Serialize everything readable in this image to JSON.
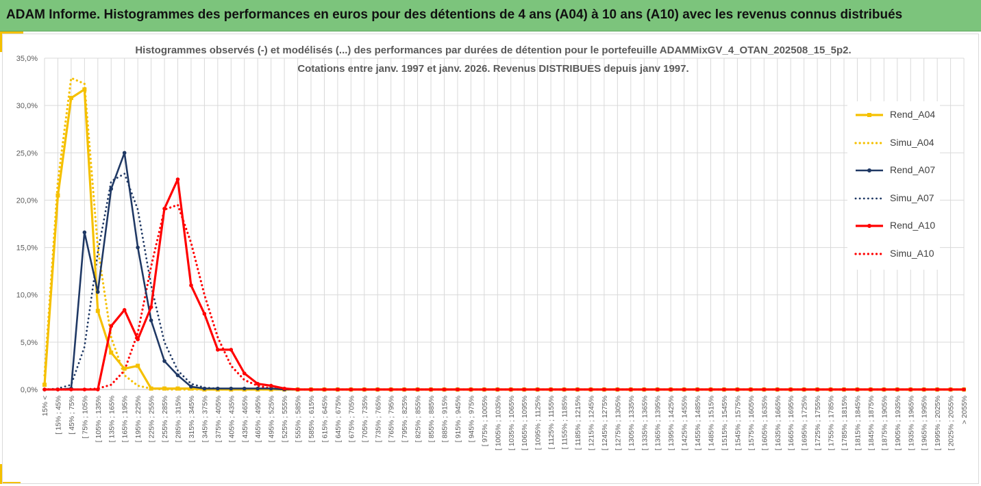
{
  "banner": {
    "title": "ADAM Informe. Histogrammes des performances en euros pour des détentions de 4 ans (A04) à 10 ans (A10) avec les revenus connus distribués"
  },
  "chart_data": {
    "type": "line",
    "title_line1": "Histogrammes observés (-) et modélisés (...) des performances par durées de détention pour  le portefeuille ADAMMixGV_4_OTAN_202508_15_5p2.",
    "title_line2": "Cotations  entre janv. 1997 et janv. 2026. Revenus DISTRIBUES depuis janv 1997.",
    "xlabel": "",
    "ylabel": "",
    "ylim": [
      0,
      35
    ],
    "y_ticks": [
      "0,0%",
      "5,0%",
      "10,0%",
      "15,0%",
      "20,0%",
      "25,0%",
      "30,0%",
      "35,0%"
    ],
    "grid": true,
    "legend_position": "right",
    "categories": [
      "15% <",
      "[ 15% ; 45%",
      "[ 45% ; 75%",
      "[ 75% ; 105%",
      "[ 105% ; 135%",
      "[ 135% ; 165%",
      "[ 165% ; 195%",
      "[ 195% ; 225%",
      "[ 225% ; 255%",
      "[ 255% ; 285%",
      "[ 285% ; 315%",
      "[ 315% ; 345%",
      "[ 345% ; 375%",
      "[ 375% ; 405%",
      "[ 405% ; 435%",
      "[ 435% ; 465%",
      "[ 465% ; 495%",
      "[ 495% ; 525%",
      "[ 525% ; 555%",
      "[ 555% ; 585%",
      "[ 585% ; 615%",
      "[ 615% ; 645%",
      "[ 645% ; 675%",
      "[ 675% ; 705%",
      "[ 705% ; 735%",
      "[ 735% ; 765%",
      "[ 765% ; 795%",
      "[ 795% ; 825%",
      "[ 825% ; 855%",
      "[ 855% ; 885%",
      "[ 885% ; 915%",
      "[ 915% ; 945%",
      "[ 945% ; 975%",
      "[ 975% ; 1005%",
      "[ 1005% ; 1035%",
      "[ 1035% ; 1065%",
      "[ 1065% ; 1095%",
      "[ 1095% ; 1125%",
      "[ 1125% ; 1155%",
      "[ 1155% ; 1185%",
      "[ 1185% ; 1215%",
      "[ 1215% ; 1245%",
      "[ 1245% ; 1275%",
      "[ 1275% ; 1305%",
      "[ 1305% ; 1335%",
      "[ 1335% ; 1365%",
      "[ 1365% ; 1395%",
      "[ 1395% ; 1425%",
      "[ 1425% ; 1455%",
      "[ 1455% ; 1485%",
      "[ 1485% ; 1515%",
      "[ 1515% ; 1545%",
      "[ 1545% ; 1575%",
      "[ 1575% ; 1605%",
      "[ 1605% ; 1635%",
      "[ 1635% ; 1665%",
      "[ 1665% ; 1695%",
      "[ 1695% ; 1725%",
      "[ 1725% ; 1755%",
      "[ 1755% ; 1785%",
      "[ 1785% ; 1815%",
      "[ 1815% ; 1845%",
      "[ 1845% ; 1875%",
      "[ 1875% ; 1905%",
      "[ 1905% ; 1935%",
      "[ 1935% ; 1965%",
      "[ 1965% ; 1995%",
      "[ 1995% ; 2025%",
      "[ 2025% ; 2055%",
      "> 2055%"
    ],
    "series": [
      {
        "name": "Rend_A04",
        "color": "#f5c000",
        "style": "solid",
        "marker": "square",
        "width": 3.2,
        "values": [
          0.5,
          20.5,
          30.8,
          31.7,
          8.3,
          3.9,
          2.2,
          2.5,
          0.1,
          0.1,
          0.1,
          0.1,
          0,
          0,
          0,
          0,
          0,
          0,
          0,
          0,
          0,
          0,
          0,
          0,
          0,
          0,
          0,
          0,
          0,
          0,
          0,
          0,
          0,
          0,
          0,
          0,
          0,
          0,
          0,
          0,
          0,
          0,
          0,
          0,
          0,
          0,
          0,
          0,
          0,
          0,
          0,
          0,
          0,
          0,
          0,
          0,
          0,
          0,
          0,
          0,
          0,
          0,
          0,
          0,
          0,
          0,
          0,
          0,
          0,
          0
        ]
      },
      {
        "name": "Simu_A04",
        "color": "#f5c000",
        "style": "dotted",
        "marker": "none",
        "width": 3.2,
        "values": [
          1.5,
          22.0,
          32.9,
          32.3,
          15.0,
          5.5,
          1.5,
          0.4,
          0.1,
          0,
          0,
          0,
          0,
          0,
          0,
          0,
          0,
          0,
          0,
          0,
          0,
          0,
          0,
          0,
          0,
          0,
          0,
          0,
          0,
          0,
          0,
          0,
          0,
          0,
          0,
          0,
          0,
          0,
          0,
          0,
          0,
          0,
          0,
          0,
          0,
          0,
          0,
          0,
          0,
          0,
          0,
          0,
          0,
          0,
          0,
          0,
          0,
          0,
          0,
          0,
          0,
          0,
          0,
          0,
          0,
          0,
          0,
          0,
          0,
          0
        ]
      },
      {
        "name": "Rend_A07",
        "color": "#1f3864",
        "style": "solid",
        "marker": "circle",
        "width": 2.6,
        "values": [
          0,
          0,
          0.1,
          16.6,
          10.3,
          21.2,
          25.0,
          15.0,
          7.3,
          3.0,
          1.5,
          0.3,
          0.1,
          0.1,
          0.1,
          0.1,
          0.1,
          0.1,
          0,
          0,
          0,
          0,
          0,
          0,
          0,
          0,
          0,
          0,
          0,
          0,
          0,
          0,
          0,
          0,
          0,
          0,
          0,
          0,
          0,
          0,
          0,
          0,
          0,
          0,
          0,
          0,
          0,
          0,
          0,
          0,
          0,
          0,
          0,
          0,
          0,
          0,
          0,
          0,
          0,
          0,
          0,
          0,
          0,
          0,
          0,
          0,
          0,
          0,
          0,
          0
        ]
      },
      {
        "name": "Simu_A07",
        "color": "#1f3864",
        "style": "dotted",
        "marker": "none",
        "width": 2.8,
        "values": [
          0,
          0.1,
          0.5,
          4.5,
          14.5,
          22.0,
          22.8,
          19.0,
          11.0,
          5.0,
          2.0,
          0.6,
          0.2,
          0.1,
          0,
          0,
          0,
          0,
          0,
          0,
          0,
          0,
          0,
          0,
          0,
          0,
          0,
          0,
          0,
          0,
          0,
          0,
          0,
          0,
          0,
          0,
          0,
          0,
          0,
          0,
          0,
          0,
          0,
          0,
          0,
          0,
          0,
          0,
          0,
          0,
          0,
          0,
          0,
          0,
          0,
          0,
          0,
          0,
          0,
          0,
          0,
          0,
          0,
          0,
          0,
          0,
          0,
          0,
          0,
          0
        ]
      },
      {
        "name": "Rend_A10",
        "color": "#ff0000",
        "style": "solid",
        "marker": "circle",
        "width": 3.2,
        "values": [
          0,
          0,
          0,
          0,
          0,
          6.7,
          8.4,
          5.3,
          8.7,
          19.1,
          22.2,
          11.0,
          8.0,
          4.2,
          4.2,
          1.7,
          0.6,
          0.4,
          0.1,
          0,
          0,
          0,
          0,
          0,
          0,
          0,
          0,
          0,
          0,
          0,
          0,
          0,
          0,
          0,
          0,
          0,
          0,
          0,
          0,
          0,
          0,
          0,
          0,
          0,
          0,
          0,
          0,
          0,
          0,
          0,
          0,
          0,
          0,
          0,
          0,
          0,
          0,
          0,
          0,
          0,
          0,
          0,
          0,
          0,
          0,
          0,
          0,
          0,
          0,
          0
        ]
      },
      {
        "name": "Simu_A10",
        "color": "#ff0000",
        "style": "dotted",
        "marker": "none",
        "width": 3.2,
        "values": [
          0,
          0,
          0,
          0,
          0.1,
          0.5,
          2.0,
          6.0,
          13.0,
          19.0,
          19.5,
          15.5,
          10.0,
          5.5,
          2.5,
          1.0,
          0.4,
          0.1,
          0,
          0,
          0,
          0,
          0,
          0,
          0,
          0,
          0,
          0,
          0,
          0,
          0,
          0,
          0,
          0,
          0,
          0,
          0,
          0,
          0,
          0,
          0,
          0,
          0,
          0,
          0,
          0,
          0,
          0,
          0,
          0,
          0,
          0,
          0,
          0,
          0,
          0,
          0,
          0,
          0,
          0,
          0,
          0,
          0,
          0,
          0,
          0,
          0,
          0,
          0,
          0
        ]
      }
    ]
  }
}
